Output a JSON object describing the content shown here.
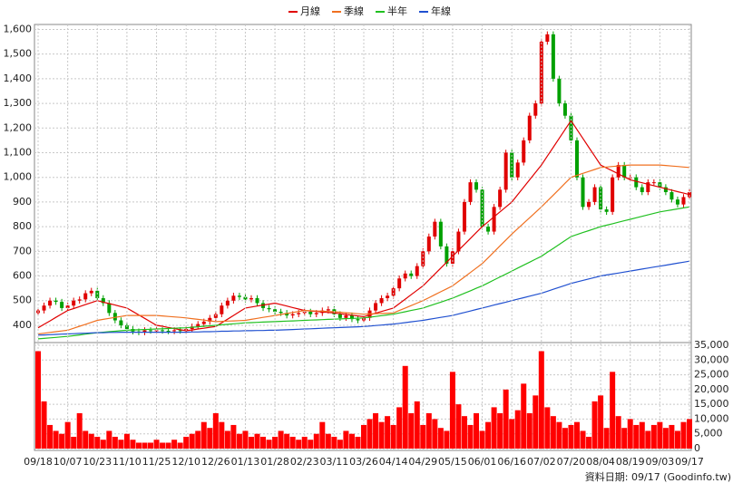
{
  "chart_data": [
    {
      "type": "candlestick",
      "up_color": "#e00000",
      "down_color": "#00a000",
      "grid": true,
      "ylim": [
        330,
        1620
      ],
      "yticks": [
        400,
        500,
        600,
        700,
        800,
        900,
        {
          "value": 1000,
          "label": "1,000"
        },
        {
          "value": 1100,
          "label": "1,100"
        },
        {
          "value": 1200,
          "label": "1,200"
        },
        {
          "value": 1300,
          "label": "1,300"
        },
        {
          "value": 1400,
          "label": "1,400"
        },
        {
          "value": 1500,
          "label": "1,500"
        },
        {
          "value": 1600,
          "label": "1,600"
        }
      ],
      "open": [
        450,
        460,
        480,
        500,
        495,
        470,
        480,
        500,
        505,
        530,
        540,
        510,
        490,
        450,
        420,
        400,
        385,
        375,
        372,
        380,
        378,
        380,
        378,
        376,
        380,
        378,
        385,
        395,
        405,
        415,
        430,
        445,
        480,
        500,
        520,
        515,
        505,
        510,
        490,
        470,
        465,
        455,
        450,
        440,
        445,
        450,
        455,
        445,
        450,
        460,
        465,
        445,
        430,
        440,
        425,
        420,
        430,
        460,
        490,
        510,
        520,
        550,
        590,
        610,
        600,
        640,
        700,
        760,
        820,
        720,
        650,
        700,
        780,
        900,
        980,
        950,
        800,
        780,
        880,
        950,
        1100,
        1000,
        1060,
        1150,
        1250,
        1300,
        1550,
        1580,
        1400,
        1300,
        1250,
        1150,
        1000,
        880,
        900,
        960,
        870,
        860,
        1000,
        1050,
        1000,
        1000,
        960,
        940,
        980,
        980,
        960,
        940,
        910,
        890,
        920
      ],
      "high": [
        472,
        492,
        512,
        512,
        507,
        492,
        512,
        517,
        542,
        552,
        552,
        522,
        502,
        462,
        432,
        412,
        397,
        387,
        392,
        392,
        392,
        392,
        390,
        392,
        392,
        397,
        407,
        417,
        427,
        442,
        457,
        492,
        512,
        532,
        532,
        527,
        522,
        522,
        502,
        482,
        477,
        467,
        462,
        457,
        462,
        467,
        467,
        462,
        472,
        477,
        477,
        457,
        452,
        452,
        437,
        442,
        472,
        502,
        522,
        532,
        562,
        602,
        622,
        622,
        652,
        712,
        772,
        832,
        832,
        732,
        712,
        792,
        912,
        992,
        992,
        962,
        812,
        892,
        962,
        1112,
        1112,
        1072,
        1162,
        1262,
        1312,
        1562,
        1592,
        1592,
        1412,
        1312,
        1262,
        1162,
        1012,
        912,
        972,
        972,
        882,
        1012,
        1062,
        1062,
        1012,
        1012,
        972,
        992,
        992,
        992,
        972,
        952,
        922,
        932,
        952
      ],
      "low": [
        438,
        448,
        468,
        483,
        458,
        458,
        468,
        488,
        493,
        518,
        498,
        478,
        438,
        408,
        388,
        373,
        363,
        360,
        360,
        366,
        366,
        366,
        364,
        364,
        366,
        366,
        373,
        383,
        393,
        403,
        418,
        433,
        468,
        488,
        503,
        493,
        493,
        478,
        458,
        453,
        443,
        438,
        428,
        428,
        433,
        438,
        433,
        433,
        438,
        448,
        433,
        418,
        418,
        413,
        408,
        408,
        418,
        448,
        478,
        498,
        508,
        538,
        578,
        588,
        588,
        628,
        688,
        748,
        708,
        638,
        638,
        688,
        768,
        888,
        938,
        788,
        768,
        768,
        868,
        938,
        988,
        988,
        1048,
        1138,
        1238,
        1288,
        1538,
        1388,
        1288,
        1238,
        1138,
        988,
        868,
        868,
        888,
        858,
        848,
        848,
        988,
        988,
        988,
        948,
        928,
        928,
        968,
        948,
        928,
        898,
        878,
        878,
        908
      ],
      "close": [
        460,
        480,
        500,
        495,
        470,
        480,
        500,
        505,
        530,
        540,
        510,
        490,
        450,
        420,
        400,
        385,
        375,
        372,
        380,
        378,
        380,
        378,
        376,
        380,
        378,
        385,
        395,
        405,
        415,
        430,
        445,
        480,
        500,
        520,
        515,
        505,
        510,
        490,
        470,
        465,
        455,
        450,
        440,
        445,
        450,
        455,
        445,
        450,
        460,
        465,
        445,
        430,
        440,
        425,
        420,
        430,
        460,
        490,
        510,
        520,
        550,
        590,
        610,
        600,
        640,
        700,
        760,
        820,
        720,
        650,
        700,
        780,
        900,
        980,
        950,
        800,
        780,
        880,
        950,
        1100,
        1000,
        1060,
        1150,
        1250,
        1300,
        1550,
        1580,
        1400,
        1300,
        1250,
        1150,
        1000,
        880,
        900,
        960,
        870,
        860,
        1000,
        1050,
        1000,
        1000,
        960,
        940,
        980,
        980,
        960,
        940,
        910,
        890,
        920,
        940
      ],
      "series": [
        {
          "name": "月線",
          "color": "#e00000",
          "values": [
            390,
            404,
            418,
            432,
            446,
            460,
            468,
            476,
            484,
            492,
            500,
            494,
            488,
            482,
            476,
            470,
            456,
            442,
            428,
            414,
            400,
            396,
            391,
            387,
            382,
            378,
            381,
            385,
            388,
            392,
            395,
            410,
            425,
            440,
            455,
            470,
            474,
            478,
            482,
            486,
            490,
            484,
            478,
            472,
            466,
            460,
            458,
            456,
            454,
            452,
            450,
            447,
            444,
            441,
            438,
            435,
            442,
            449,
            456,
            463,
            470,
            488,
            506,
            524,
            542,
            560,
            584,
            608,
            632,
            656,
            680,
            704,
            728,
            752,
            776,
            800,
            820,
            840,
            860,
            880,
            900,
            930,
            960,
            990,
            1020,
            1050,
            1086,
            1122,
            1158,
            1194,
            1230,
            1194,
            1158,
            1122,
            1086,
            1050,
            1038,
            1026,
            1014,
            1002,
            990,
            984,
            978,
            972,
            966,
            960,
            954,
            948,
            942,
            936,
            930
          ]
        },
        {
          "name": "季線",
          "color": "#f07020",
          "values": [
            365,
            368,
            371,
            374,
            377,
            380,
            388,
            396,
            404,
            412,
            420,
            424,
            428,
            432,
            436,
            440,
            440,
            440,
            440,
            440,
            440,
            438,
            436,
            434,
            432,
            430,
            427,
            424,
            421,
            418,
            415,
            416,
            417,
            418,
            419,
            420,
            424,
            428,
            432,
            436,
            440,
            444,
            448,
            452,
            456,
            460,
            459,
            458,
            457,
            456,
            455,
            453,
            451,
            449,
            447,
            445,
            446,
            447,
            448,
            449,
            450,
            460,
            470,
            480,
            490,
            500,
            512,
            524,
            536,
            548,
            560,
            578,
            596,
            614,
            632,
            650,
            674,
            698,
            722,
            746,
            770,
            792,
            814,
            836,
            858,
            880,
            904,
            928,
            952,
            976,
            1000,
            1008,
            1016,
            1024,
            1032,
            1040,
            1042,
            1044,
            1046,
            1048,
            1050,
            1050,
            1050,
            1050,
            1050,
            1050,
            1048,
            1046,
            1044,
            1042,
            1040
          ]
        },
        {
          "name": "半年",
          "color": "#20c020",
          "values": [
            345,
            347,
            349,
            351,
            353,
            355,
            358,
            361,
            364,
            367,
            370,
            372,
            374,
            376,
            378,
            380,
            381,
            382,
            383,
            384,
            385,
            386,
            387,
            388,
            389,
            390,
            392,
            394,
            396,
            398,
            400,
            402,
            404,
            406,
            408,
            410,
            411,
            412,
            413,
            414,
            415,
            416,
            417,
            418,
            419,
            420,
            421,
            422,
            423,
            424,
            425,
            426,
            427,
            428,
            429,
            430,
            433,
            436,
            439,
            442,
            445,
            450,
            455,
            460,
            465,
            470,
            478,
            486,
            494,
            502,
            510,
            520,
            530,
            540,
            550,
            560,
            572,
            584,
            596,
            608,
            620,
            632,
            644,
            656,
            668,
            680,
            696,
            712,
            728,
            744,
            760,
            768,
            776,
            784,
            792,
            800,
            806,
            812,
            818,
            824,
            830,
            836,
            842,
            848,
            854,
            860,
            864,
            868,
            872,
            876,
            880
          ]
        },
        {
          "name": "年線",
          "color": "#2050d0",
          "values": [
            360,
            361,
            362,
            363,
            364,
            365,
            366,
            367,
            368,
            369,
            370,
            370,
            371,
            371,
            372,
            372,
            372,
            372,
            372,
            372,
            372,
            372,
            372,
            372,
            372,
            372,
            373,
            373,
            374,
            374,
            375,
            376,
            376,
            377,
            377,
            378,
            378,
            379,
            379,
            380,
            380,
            381,
            382,
            383,
            384,
            385,
            386,
            387,
            388,
            389,
            390,
            391,
            392,
            393,
            394,
            395,
            397,
            399,
            401,
            403,
            405,
            408,
            411,
            414,
            417,
            420,
            424,
            428,
            432,
            436,
            440,
            446,
            452,
            458,
            464,
            470,
            476,
            482,
            488,
            494,
            500,
            506,
            512,
            518,
            524,
            530,
            538,
            546,
            554,
            562,
            570,
            576,
            582,
            588,
            594,
            600,
            604,
            608,
            612,
            616,
            620,
            624,
            628,
            632,
            636,
            640,
            644,
            648,
            652,
            656,
            660
          ]
        }
      ]
    },
    {
      "type": "bar",
      "color": "#ff0000",
      "grid": true,
      "ylim": [
        0,
        35000
      ],
      "yticks": [
        0,
        {
          "value": 5000,
          "label": "5,000"
        },
        {
          "value": 10000,
          "label": "10,000"
        },
        {
          "value": 15000,
          "label": "15,000"
        },
        {
          "value": 20000,
          "label": "20,000"
        },
        {
          "value": 25000,
          "label": "25,000"
        },
        {
          "value": 30000,
          "label": "30,000"
        },
        {
          "value": 35000,
          "label": "35,000"
        }
      ],
      "categories": [
        "09/18",
        null,
        null,
        null,
        null,
        "10/07",
        null,
        null,
        null,
        null,
        "10/23",
        null,
        null,
        null,
        null,
        "11/10",
        null,
        null,
        null,
        null,
        "11/25",
        null,
        null,
        null,
        null,
        "12/10",
        null,
        null,
        null,
        null,
        "12/26",
        null,
        null,
        null,
        null,
        "01/13",
        null,
        null,
        null,
        null,
        "01/28",
        null,
        null,
        null,
        null,
        "02/23",
        null,
        null,
        null,
        null,
        "03/11",
        null,
        null,
        null,
        null,
        "03/26",
        null,
        null,
        null,
        null,
        "04/14",
        null,
        null,
        null,
        null,
        "04/29",
        null,
        null,
        null,
        null,
        "05/15",
        null,
        null,
        null,
        null,
        "06/01",
        null,
        null,
        null,
        null,
        "06/16",
        null,
        null,
        null,
        null,
        "07/02",
        null,
        null,
        null,
        null,
        "07/20",
        null,
        null,
        null,
        null,
        "08/04",
        null,
        null,
        null,
        null,
        "08/19",
        null,
        null,
        null,
        null,
        "09/03",
        null,
        null,
        null,
        null,
        "09/17"
      ],
      "values": [
        33000,
        16000,
        8000,
        6000,
        5000,
        9000,
        4000,
        12000,
        6000,
        5000,
        4000,
        3000,
        6000,
        4000,
        3000,
        5000,
        3000,
        2000,
        2000,
        2000,
        3000,
        2000,
        2000,
        3000,
        2000,
        4000,
        5000,
        6000,
        9000,
        7000,
        12000,
        9000,
        6000,
        8000,
        5000,
        6000,
        4000,
        5000,
        4000,
        3000,
        4000,
        6000,
        5000,
        4000,
        3000,
        4000,
        3000,
        5000,
        9000,
        5000,
        4000,
        3000,
        6000,
        5000,
        4000,
        8000,
        10000,
        12000,
        9000,
        11000,
        8000,
        14000,
        28000,
        12000,
        16000,
        8000,
        12000,
        10000,
        7000,
        6000,
        26000,
        15000,
        11000,
        8000,
        12000,
        6000,
        9000,
        14000,
        12000,
        20000,
        10000,
        13000,
        22000,
        12000,
        18000,
        33000,
        14000,
        11000,
        9000,
        7000,
        8000,
        9000,
        6000,
        4000,
        16000,
        18000,
        7000,
        26000,
        11000,
        7000,
        10000,
        8000,
        9000,
        6000,
        8000,
        9000,
        7000,
        8000,
        6000,
        9000,
        10000
      ]
    }
  ],
  "footer": "資料日期: 09/17 (Goodinfo.tw)"
}
